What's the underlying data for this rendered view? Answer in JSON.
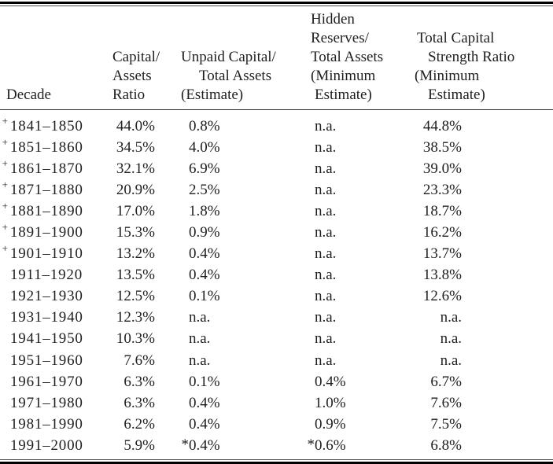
{
  "page": {
    "background": "#ffffff",
    "text_color": "#1f1f1f",
    "thick_rule_color": "#000000",
    "thin_rule_color": "#4a4a4a"
  },
  "table": {
    "columns": [
      {
        "id": "decade",
        "header_lines": [
          "Decade"
        ]
      },
      {
        "id": "capital-assets-ratio",
        "header_lines": [
          "Capital/",
          "Assets",
          "Ratio"
        ]
      },
      {
        "id": "unpaid-capital",
        "header_lines": [
          "Unpaid Capital/",
          "Total Assets",
          "(Estimate)"
        ]
      },
      {
        "id": "hidden-reserves",
        "header_lines": [
          "Hidden",
          "Reserves/",
          "Total Assets",
          "(Minimum",
          "Estimate)"
        ]
      },
      {
        "id": "total-capital-strength",
        "header_lines": [
          "Total Capital",
          "Strength Ratio",
          "(Minimum",
          "Estimate)"
        ]
      }
    ],
    "rows": [
      {
        "marker": "+",
        "decade": "1841–1850",
        "capital_assets_ratio": "44.0%",
        "unpaid_capital": "0.8%",
        "hidden_reserves": "n.a.",
        "total_capital_strength": "44.8%"
      },
      {
        "marker": "+",
        "decade": "1851–1860",
        "capital_assets_ratio": "34.5%",
        "unpaid_capital": "4.0%",
        "hidden_reserves": "n.a.",
        "total_capital_strength": "38.5%"
      },
      {
        "marker": "+",
        "decade": "1861–1870",
        "capital_assets_ratio": "32.1%",
        "unpaid_capital": "6.9%",
        "hidden_reserves": "n.a.",
        "total_capital_strength": "39.0%"
      },
      {
        "marker": "+",
        "decade": "1871–1880",
        "capital_assets_ratio": "20.9%",
        "unpaid_capital": "2.5%",
        "hidden_reserves": "n.a.",
        "total_capital_strength": "23.3%"
      },
      {
        "marker": "+",
        "decade": "1881–1890",
        "capital_assets_ratio": "17.0%",
        "unpaid_capital": "1.8%",
        "hidden_reserves": "n.a.",
        "total_capital_strength": "18.7%"
      },
      {
        "marker": "+",
        "decade": "1891–1900",
        "capital_assets_ratio": "15.3%",
        "unpaid_capital": "0.9%",
        "hidden_reserves": "n.a.",
        "total_capital_strength": "16.2%"
      },
      {
        "marker": "+",
        "decade": "1901–1910",
        "capital_assets_ratio": "13.2%",
        "unpaid_capital": "0.4%",
        "hidden_reserves": "n.a.",
        "total_capital_strength": "13.7%"
      },
      {
        "marker": "",
        "decade": "1911–1920",
        "capital_assets_ratio": "13.5%",
        "unpaid_capital": "0.4%",
        "hidden_reserves": "n.a.",
        "total_capital_strength": "13.8%"
      },
      {
        "marker": "",
        "decade": "1921–1930",
        "capital_assets_ratio": "12.5%",
        "unpaid_capital": "0.1%",
        "hidden_reserves": "n.a.",
        "total_capital_strength": "12.6%"
      },
      {
        "marker": "",
        "decade": "1931–1940",
        "capital_assets_ratio": "12.3%",
        "unpaid_capital": "n.a.",
        "hidden_reserves": "n.a.",
        "total_capital_strength": "n.a."
      },
      {
        "marker": "",
        "decade": "1941–1950",
        "capital_assets_ratio": "10.3%",
        "unpaid_capital": "n.a.",
        "hidden_reserves": "n.a.",
        "total_capital_strength": "n.a."
      },
      {
        "marker": "",
        "decade": "1951–1960",
        "capital_assets_ratio": "7.6%",
        "unpaid_capital": "n.a.",
        "hidden_reserves": "n.a.",
        "total_capital_strength": "n.a."
      },
      {
        "marker": "",
        "decade": "1961–1970",
        "capital_assets_ratio": "6.3%",
        "unpaid_capital": "0.1%",
        "hidden_reserves": "0.4%",
        "total_capital_strength": "6.7%"
      },
      {
        "marker": "",
        "decade": "1971–1980",
        "capital_assets_ratio": "6.3%",
        "unpaid_capital": "0.4%",
        "hidden_reserves": "1.0%",
        "total_capital_strength": "7.6%"
      },
      {
        "marker": "",
        "decade": "1981–1990",
        "capital_assets_ratio": "6.2%",
        "unpaid_capital": "0.4%",
        "hidden_reserves": "0.9%",
        "total_capital_strength": "7.5%"
      },
      {
        "marker": "",
        "decade": "1991–2000",
        "capital_assets_ratio": "5.9%",
        "unpaid_capital": "*0.4%",
        "hidden_reserves": "*0.6%",
        "total_capital_strength": "6.8%"
      }
    ]
  }
}
